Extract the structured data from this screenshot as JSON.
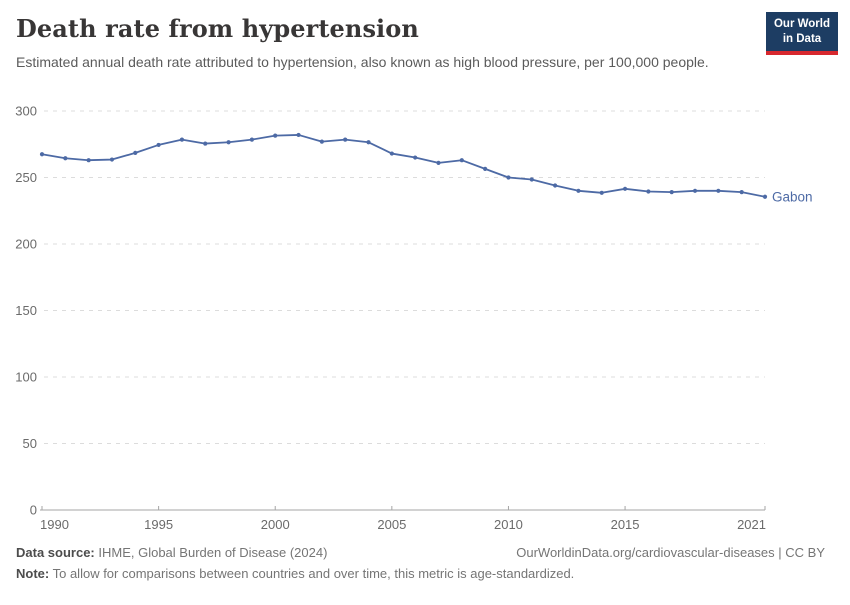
{
  "header": {
    "title": "Death rate from hypertension",
    "subtitle": "Estimated annual death rate attributed to hypertension, also known as high blood pressure, per 100,000 people.",
    "logo": {
      "line1": "Our World",
      "line2": "in Data",
      "bg_color": "#1d3d63",
      "accent_color": "#d7282e"
    }
  },
  "chart_data": {
    "type": "line",
    "title": "Death rate from hypertension",
    "xlabel": "",
    "ylabel": "",
    "xlim": [
      1990,
      2021
    ],
    "ylim": [
      0,
      300
    ],
    "xticks": [
      1990,
      1995,
      2000,
      2005,
      2010,
      2015,
      2021
    ],
    "yticks": [
      0,
      50,
      100,
      150,
      200,
      250,
      300
    ],
    "grid": "horizontal-dashed",
    "legend": "end-of-line-label",
    "series": [
      {
        "name": "Gabon",
        "color": "#4d6aa5",
        "x": [
          1990,
          1991,
          1992,
          1993,
          1994,
          1995,
          1996,
          1997,
          1998,
          1999,
          2000,
          2001,
          2002,
          2003,
          2004,
          2005,
          2006,
          2007,
          2008,
          2009,
          2010,
          2011,
          2012,
          2013,
          2014,
          2015,
          2016,
          2017,
          2018,
          2019,
          2020,
          2021
        ],
        "values": [
          267.5,
          264.5,
          263,
          263.5,
          268.5,
          274.5,
          278.5,
          275.5,
          276.5,
          278.5,
          281.5,
          282,
          277,
          278.5,
          276.5,
          268,
          265,
          261,
          263,
          256.5,
          250,
          248.5,
          244,
          240,
          238.5,
          241.5,
          239.5,
          239,
          240,
          240,
          239,
          235.5
        ]
      }
    ]
  },
  "footer": {
    "datasource_label": "Data source:",
    "datasource_value": "IHME, Global Burden of Disease (2024)",
    "link": "OurWorldinData.org/cardiovascular-diseases | CC BY",
    "note_label": "Note:",
    "note_value": "To allow for comparisons between countries and over time, this metric is age-standardized."
  },
  "colors": {
    "line": "#4d6aa5",
    "grid": "#dcdcdc",
    "axis": "#a5a5a5",
    "tick_label": "#6b6b6b",
    "title": "#383636",
    "subtitle": "#5b5b5b"
  }
}
